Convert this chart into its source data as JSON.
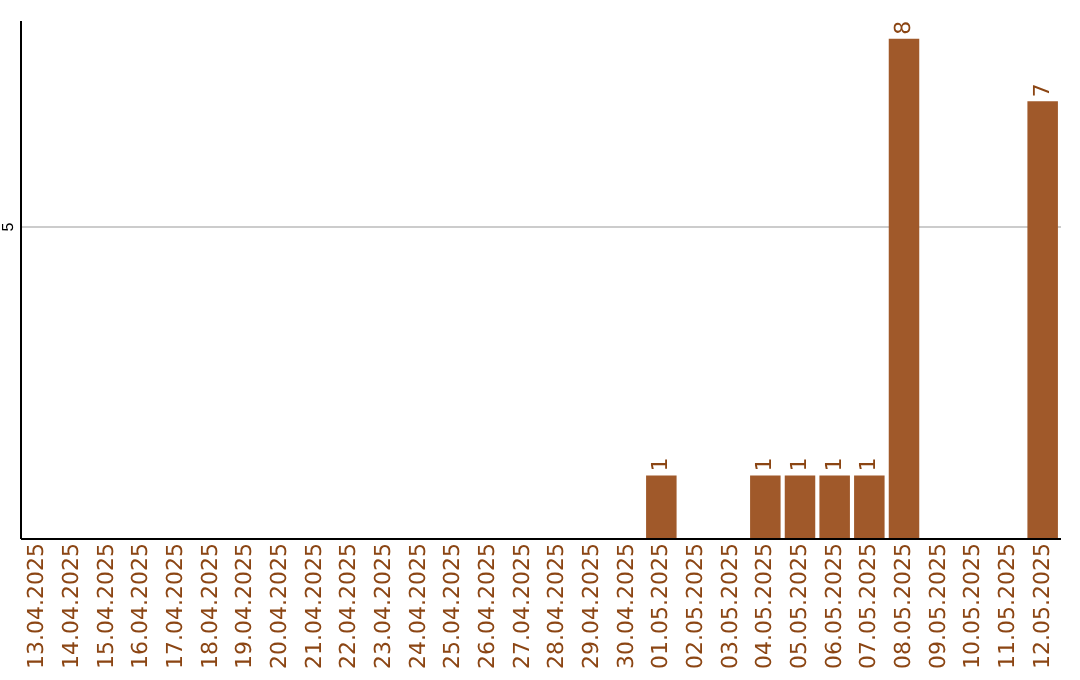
{
  "chart_data": {
    "type": "bar",
    "categories": [
      "13.04.2025",
      "14.04.2025",
      "15.04.2025",
      "16.04.2025",
      "17.04.2025",
      "18.04.2025",
      "19.04.2025",
      "20.04.2025",
      "21.04.2025",
      "22.04.2025",
      "23.04.2025",
      "24.04.2025",
      "25.04.2025",
      "26.04.2025",
      "27.04.2025",
      "28.04.2025",
      "29.04.2025",
      "30.04.2025",
      "01.05.2025",
      "02.05.2025",
      "03.05.2025",
      "04.05.2025",
      "05.05.2025",
      "06.05.2025",
      "07.05.2025",
      "08.05.2025",
      "09.05.2025",
      "10.05.2025",
      "11.05.2025",
      "12.05.2025"
    ],
    "values": [
      null,
      null,
      null,
      null,
      null,
      null,
      null,
      null,
      null,
      null,
      null,
      null,
      null,
      null,
      null,
      null,
      null,
      null,
      1,
      null,
      null,
      1,
      1,
      1,
      1,
      8,
      null,
      null,
      null,
      7
    ],
    "value_labels": [
      null,
      null,
      null,
      null,
      null,
      null,
      null,
      null,
      null,
      null,
      null,
      null,
      null,
      null,
      null,
      null,
      null,
      null,
      "1",
      null,
      null,
      "1",
      "1",
      "1",
      "1",
      "8",
      null,
      null,
      null,
      "7"
    ],
    "color": "#a0592a",
    "ylim": [
      0,
      8.3
    ],
    "yticks": [
      5
    ],
    "grid": "y"
  }
}
